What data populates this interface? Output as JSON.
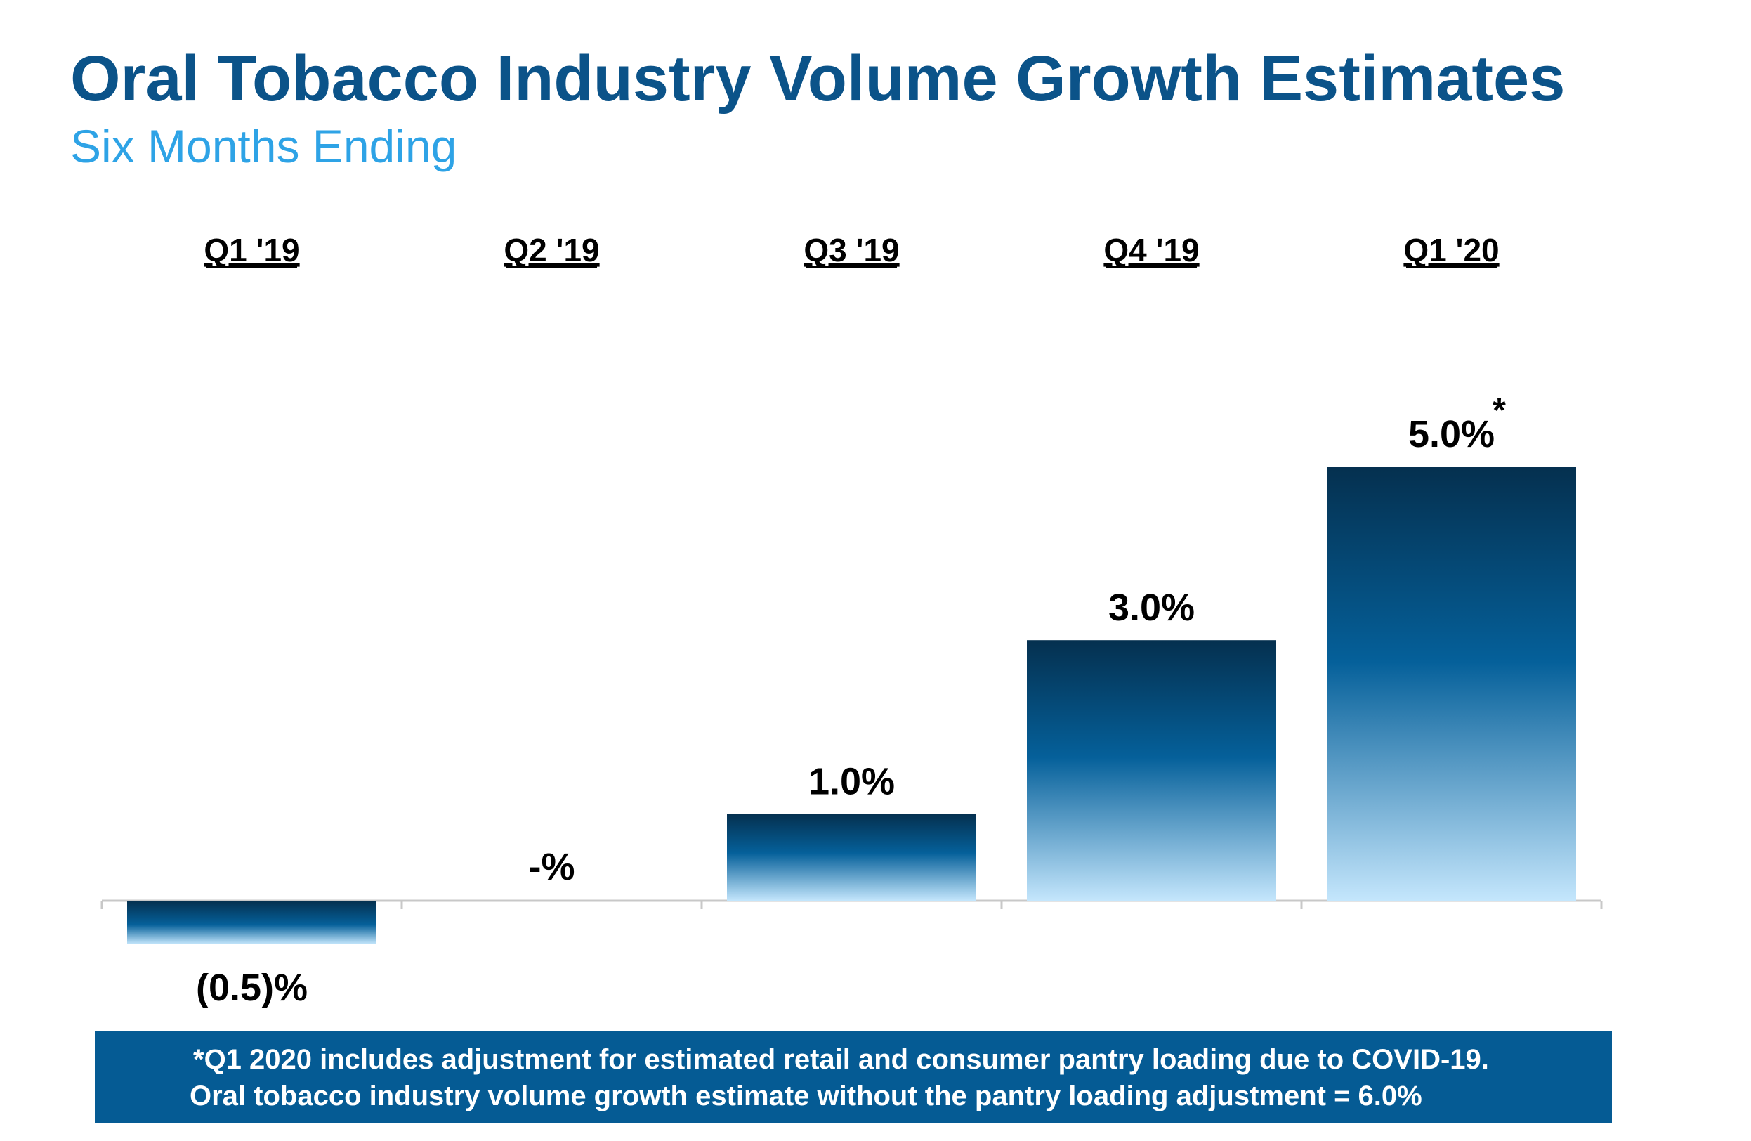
{
  "header": {
    "title": "Oral Tobacco Industry Volume Growth Estimates",
    "subtitle": "Six Months Ending"
  },
  "chart_data": {
    "type": "bar",
    "categories": [
      "Q1 '19",
      "Q2 '19",
      "Q3 '19",
      "Q4 '19",
      "Q1 '20"
    ],
    "values": [
      -0.5,
      0.0,
      1.0,
      3.0,
      5.0
    ],
    "data_labels": [
      "(0.5)%",
      "-%",
      "1.0%",
      "3.0%",
      "5.0%"
    ],
    "annotations": [
      {
        "category": "Q1 '20",
        "text": "*"
      }
    ],
    "category_label_position": "top",
    "ylim": [
      -0.5,
      5.0
    ],
    "grid": false,
    "colors": {
      "bar_dark": "#05304f",
      "bar_mid": "#05609a",
      "bar_light": "#bfe3fb",
      "axis": "#c8c8c8",
      "label": "#000000"
    }
  },
  "footnote": {
    "line1": "*Q1 2020 includes adjustment for estimated retail and consumer pantry loading due to COVID-19.",
    "line2": "Oral tobacco industry volume growth estimate without the pantry loading adjustment = 6.0%"
  }
}
